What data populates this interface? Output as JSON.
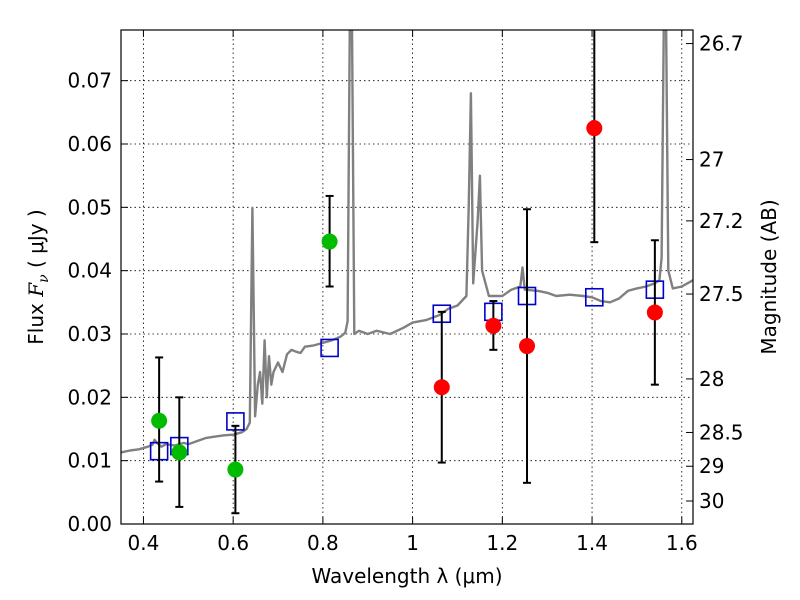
{
  "chart_data": {
    "type": "scatter",
    "xlabel": "Wavelength  λ (μm)",
    "ylabel_prefix": "Flux  ",
    "ylabel_symbol": "F",
    "ylabel_sub": "ν",
    "ylabel_suffix": "  ( μJy )",
    "y2label": "Magnitude (AB)",
    "xlim": [
      0.35,
      1.625
    ],
    "ylim": [
      0.0,
      0.078
    ],
    "grid": true,
    "x_ticks": [
      {
        "value": 0.4,
        "label": "0.4"
      },
      {
        "value": 0.6,
        "label": "0.6"
      },
      {
        "value": 0.8,
        "label": "0.8"
      },
      {
        "value": 1.0,
        "label": "1"
      },
      {
        "value": 1.2,
        "label": "1.2"
      },
      {
        "value": 1.4,
        "label": "1.4"
      },
      {
        "value": 1.6,
        "label": "1.6"
      }
    ],
    "y_ticks": [
      {
        "value": 0.0,
        "label": "0.00"
      },
      {
        "value": 0.01,
        "label": "0.01"
      },
      {
        "value": 0.02,
        "label": "0.02"
      },
      {
        "value": 0.03,
        "label": "0.03"
      },
      {
        "value": 0.04,
        "label": "0.04"
      },
      {
        "value": 0.05,
        "label": "0.05"
      },
      {
        "value": 0.06,
        "label": "0.06"
      },
      {
        "value": 0.07,
        "label": "0.07"
      }
    ],
    "y2_ticks": [
      {
        "mag": 26.7,
        "label": "26.7"
      },
      {
        "mag": 27.0,
        "label": "27"
      },
      {
        "mag": 27.2,
        "label": "27.2"
      },
      {
        "mag": 27.5,
        "label": "27.5"
      },
      {
        "mag": 28.0,
        "label": "28"
      },
      {
        "mag": 28.5,
        "label": "28.5"
      },
      {
        "mag": 29.0,
        "label": "29"
      },
      {
        "mag": 30.0,
        "label": "30"
      }
    ],
    "series": [
      {
        "name": "template_spectrum",
        "style": "line",
        "color": "#808080",
        "points": [
          [
            0.35,
            0.0113
          ],
          [
            0.37,
            0.0116
          ],
          [
            0.39,
            0.0118
          ],
          [
            0.41,
            0.0122
          ],
          [
            0.42,
            0.0125
          ],
          [
            0.425,
            0.0133
          ],
          [
            0.43,
            0.0128
          ],
          [
            0.44,
            0.0122
          ],
          [
            0.45,
            0.0126
          ],
          [
            0.47,
            0.0124
          ],
          [
            0.49,
            0.0128
          ],
          [
            0.5,
            0.0126
          ],
          [
            0.52,
            0.0131
          ],
          [
            0.54,
            0.0136
          ],
          [
            0.56,
            0.0138
          ],
          [
            0.58,
            0.014
          ],
          [
            0.6,
            0.0141
          ],
          [
            0.62,
            0.0145
          ],
          [
            0.63,
            0.015
          ],
          [
            0.637,
            0.016
          ],
          [
            0.643,
            0.0499
          ],
          [
            0.649,
            0.017
          ],
          [
            0.655,
            0.022
          ],
          [
            0.66,
            0.024
          ],
          [
            0.665,
            0.019
          ],
          [
            0.67,
            0.029
          ],
          [
            0.675,
            0.02
          ],
          [
            0.68,
            0.0265
          ],
          [
            0.685,
            0.022
          ],
          [
            0.69,
            0.024
          ],
          [
            0.7,
            0.0255
          ],
          [
            0.71,
            0.024
          ],
          [
            0.72,
            0.0268
          ],
          [
            0.73,
            0.0275
          ],
          [
            0.74,
            0.0272
          ],
          [
            0.75,
            0.027
          ],
          [
            0.76,
            0.028
          ],
          [
            0.78,
            0.0282
          ],
          [
            0.8,
            0.0286
          ],
          [
            0.82,
            0.029
          ],
          [
            0.84,
            0.0296
          ],
          [
            0.85,
            0.0302
          ],
          [
            0.855,
            0.032
          ],
          [
            0.86,
            0.079
          ],
          [
            0.865,
            0.079
          ],
          [
            0.87,
            0.03
          ],
          [
            0.88,
            0.0305
          ],
          [
            0.9,
            0.03
          ],
          [
            0.92,
            0.0305
          ],
          [
            0.95,
            0.03
          ],
          [
            0.98,
            0.031
          ],
          [
            1.0,
            0.0318
          ],
          [
            1.03,
            0.0322
          ],
          [
            1.06,
            0.033
          ],
          [
            1.08,
            0.034
          ],
          [
            1.1,
            0.0345
          ],
          [
            1.12,
            0.036
          ],
          [
            1.125,
            0.05
          ],
          [
            1.13,
            0.068
          ],
          [
            1.135,
            0.038
          ],
          [
            1.145,
            0.048
          ],
          [
            1.15,
            0.055
          ],
          [
            1.155,
            0.04
          ],
          [
            1.17,
            0.036
          ],
          [
            1.2,
            0.036
          ],
          [
            1.22,
            0.037
          ],
          [
            1.24,
            0.0375
          ],
          [
            1.245,
            0.0405
          ],
          [
            1.25,
            0.037
          ],
          [
            1.28,
            0.0368
          ],
          [
            1.3,
            0.0365
          ],
          [
            1.32,
            0.036
          ],
          [
            1.35,
            0.0362
          ],
          [
            1.38,
            0.036
          ],
          [
            1.4,
            0.0358
          ],
          [
            1.42,
            0.0352
          ],
          [
            1.44,
            0.035
          ],
          [
            1.46,
            0.0356
          ],
          [
            1.48,
            0.0368
          ],
          [
            1.5,
            0.0372
          ],
          [
            1.52,
            0.0375
          ],
          [
            1.54,
            0.038
          ],
          [
            1.55,
            0.0385
          ],
          [
            1.555,
            0.042
          ],
          [
            1.56,
            0.079
          ],
          [
            1.565,
            0.079
          ],
          [
            1.57,
            0.04
          ],
          [
            1.58,
            0.0372
          ],
          [
            1.6,
            0.0375
          ],
          [
            1.625,
            0.0385
          ]
        ]
      },
      {
        "name": "model_photometry",
        "style": "open_square",
        "color": "#0000cc",
        "points": [
          [
            0.435,
            0.0115
          ],
          [
            0.48,
            0.0123
          ],
          [
            0.605,
            0.0162
          ],
          [
            0.815,
            0.0278
          ],
          [
            1.065,
            0.0332
          ],
          [
            1.18,
            0.0335
          ],
          [
            1.255,
            0.036
          ],
          [
            1.405,
            0.0358
          ],
          [
            1.54,
            0.037
          ]
        ]
      },
      {
        "name": "detections_optical",
        "style": "filled_circle",
        "color": "#00bb00",
        "points": [
          {
            "x": 0.435,
            "y": 0.0163,
            "ylo": 0.0067,
            "yhi": 0.0263
          },
          {
            "x": 0.48,
            "y": 0.0113,
            "ylo": 0.0027,
            "yhi": 0.02
          },
          {
            "x": 0.605,
            "y": 0.0086,
            "ylo": 0.0017,
            "yhi": 0.0155
          },
          {
            "x": 0.815,
            "y": 0.0446,
            "ylo": 0.0375,
            "yhi": 0.0518
          }
        ]
      },
      {
        "name": "detections_nir",
        "style": "filled_circle",
        "color": "#ff0000",
        "points": [
          {
            "x": 1.065,
            "y": 0.0216,
            "ylo": 0.0097,
            "yhi": 0.0335
          },
          {
            "x": 1.18,
            "y": 0.0313,
            "ylo": 0.0275,
            "yhi": 0.0352
          },
          {
            "x": 1.255,
            "y": 0.0281,
            "ylo": 0.0065,
            "yhi": 0.0497
          },
          {
            "x": 1.405,
            "y": 0.0625,
            "ylo": 0.0445,
            "yhi": 0.079
          },
          {
            "x": 1.54,
            "y": 0.0334,
            "ylo": 0.022,
            "yhi": 0.0448
          }
        ]
      }
    ]
  }
}
